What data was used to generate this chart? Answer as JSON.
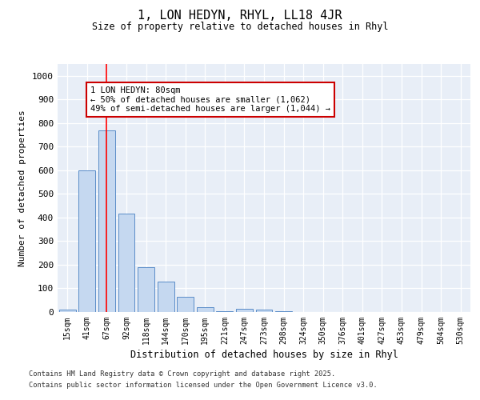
{
  "title": "1, LON HEDYN, RHYL, LL18 4JR",
  "subtitle": "Size of property relative to detached houses in Rhyl",
  "xlabel": "Distribution of detached houses by size in Rhyl",
  "ylabel": "Number of detached properties",
  "bar_color": "#c5d8f0",
  "bar_edge_color": "#5b8dc8",
  "bg_color": "#e8eef7",
  "categories": [
    "15sqm",
    "41sqm",
    "67sqm",
    "92sqm",
    "118sqm",
    "144sqm",
    "170sqm",
    "195sqm",
    "221sqm",
    "247sqm",
    "273sqm",
    "298sqm",
    "324sqm",
    "350sqm",
    "376sqm",
    "401sqm",
    "427sqm",
    "453sqm",
    "479sqm",
    "504sqm",
    "530sqm"
  ],
  "values": [
    10,
    600,
    770,
    415,
    190,
    130,
    65,
    20,
    5,
    15,
    10,
    5,
    0,
    0,
    0,
    0,
    0,
    0,
    0,
    0,
    0
  ],
  "ylim": [
    0,
    1050
  ],
  "yticks": [
    0,
    100,
    200,
    300,
    400,
    500,
    600,
    700,
    800,
    900,
    1000
  ],
  "property_line_x": 2.0,
  "annotation_text": "1 LON HEDYN: 80sqm\n← 50% of detached houses are smaller (1,062)\n49% of semi-detached houses are larger (1,044) →",
  "annotation_box_color": "#cc0000",
  "footnote1": "Contains HM Land Registry data © Crown copyright and database right 2025.",
  "footnote2": "Contains public sector information licensed under the Open Government Licence v3.0.",
  "title_fontsize": 11,
  "subtitle_fontsize": 8.5
}
